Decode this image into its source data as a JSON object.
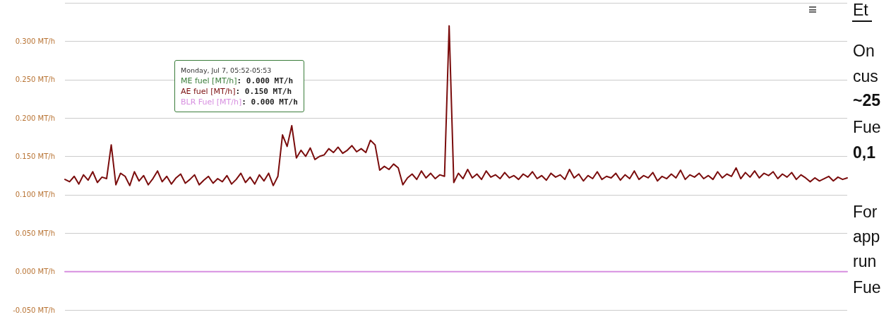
{
  "chart_data": {
    "type": "line",
    "categories": [
      null,
      null,
      null,
      null,
      null,
      null,
      null,
      null,
      null,
      null,
      null,
      null,
      null,
      null,
      null,
      null,
      null,
      null,
      null,
      null,
      null,
      null,
      null,
      null,
      null,
      null,
      null,
      null,
      null,
      null,
      null,
      null,
      null,
      null,
      null,
      null,
      null,
      null,
      null,
      null,
      null,
      null,
      null,
      null,
      null,
      null,
      null,
      null,
      null,
      null,
      null,
      null,
      null,
      null,
      null,
      null,
      null,
      null,
      null,
      null,
      null,
      null,
      null,
      null,
      null,
      null,
      null,
      null,
      null,
      null,
      null,
      null,
      null,
      null,
      null,
      null,
      null,
      null,
      null,
      null,
      null,
      null,
      null,
      null,
      null,
      null,
      null,
      null,
      null,
      null,
      null,
      null,
      null,
      null,
      null,
      null,
      null,
      null,
      null,
      null,
      null,
      null,
      null,
      null,
      null,
      null,
      null,
      null,
      null,
      null,
      null,
      null,
      null,
      null,
      null,
      null,
      null,
      null,
      null,
      null,
      null,
      null,
      null,
      null,
      null,
      null,
      null,
      null,
      null,
      null,
      null,
      null,
      null,
      null,
      null,
      null,
      null,
      null,
      null,
      null,
      null,
      null,
      null,
      null,
      null,
      null,
      null,
      null,
      null,
      null,
      null,
      null,
      null,
      null,
      null,
      null,
      null,
      null,
      null,
      null,
      null,
      null,
      null,
      null,
      null,
      null,
      null,
      null,
      null,
      null
    ],
    "series": [
      {
        "name": "ME fuel [MT/h]",
        "color": "#3a7d3a",
        "values": [
          null,
          null,
          null,
          null,
          null,
          null,
          null,
          null,
          null,
          null,
          null,
          null,
          null,
          null,
          null,
          null,
          null,
          null,
          null,
          null,
          null,
          null,
          null,
          null,
          null,
          null,
          null,
          null,
          null,
          null,
          null,
          null,
          null,
          null,
          null,
          null,
          null,
          null,
          null,
          null,
          null,
          null,
          null,
          null,
          null,
          null,
          null,
          null,
          null,
          null,
          null,
          null,
          null,
          null,
          null,
          null,
          null,
          null,
          null,
          null,
          null,
          null,
          null,
          null,
          null,
          null,
          null,
          null,
          null,
          null,
          null,
          null,
          null,
          null,
          null,
          null,
          null,
          null,
          null,
          null,
          null,
          null,
          null,
          null,
          null,
          null,
          null,
          null,
          null,
          null,
          null,
          null,
          null,
          null,
          null,
          null,
          null,
          null,
          null,
          null,
          null,
          null,
          null,
          null,
          null,
          null,
          null,
          null,
          null,
          null,
          null,
          null,
          null,
          null,
          null,
          null,
          null,
          null,
          null,
          null,
          null,
          null,
          null,
          null,
          null,
          null,
          null,
          null,
          null,
          null,
          null,
          null,
          null,
          null,
          null,
          null,
          null,
          null,
          null,
          null,
          null,
          null,
          null,
          null,
          null,
          null,
          null,
          null,
          null,
          null,
          null,
          null,
          null,
          null,
          null,
          null,
          null,
          null,
          null,
          null,
          null,
          null,
          null,
          null,
          null,
          null,
          null,
          null,
          null,
          null
        ]
      },
      {
        "name": "AE fuel [MT/h]",
        "color": "#7a0c0c",
        "values": [
          0.12,
          0.117,
          0.124,
          0.114,
          0.126,
          0.119,
          0.13,
          0.116,
          0.123,
          0.121,
          0.165,
          0.113,
          0.128,
          0.124,
          0.112,
          0.13,
          0.118,
          0.125,
          0.113,
          0.121,
          0.131,
          0.117,
          0.124,
          0.114,
          0.122,
          0.127,
          0.115,
          0.12,
          0.126,
          0.113,
          0.119,
          0.124,
          0.115,
          0.121,
          0.117,
          0.125,
          0.114,
          0.12,
          0.128,
          0.116,
          0.123,
          0.114,
          0.126,
          0.118,
          0.128,
          0.112,
          0.124,
          0.178,
          0.163,
          0.19,
          0.148,
          0.158,
          0.15,
          0.161,
          0.146,
          0.15,
          0.152,
          0.16,
          0.155,
          0.162,
          0.154,
          0.158,
          0.164,
          0.156,
          0.16,
          0.155,
          0.171,
          0.165,
          0.132,
          0.137,
          0.133,
          0.14,
          0.135,
          0.113,
          0.122,
          0.127,
          0.12,
          0.131,
          0.122,
          0.128,
          0.121,
          0.126,
          0.124,
          0.32,
          0.116,
          0.128,
          0.121,
          0.133,
          0.122,
          0.127,
          0.12,
          0.131,
          0.123,
          0.126,
          0.121,
          0.129,
          0.122,
          0.125,
          0.12,
          0.127,
          0.123,
          0.13,
          0.121,
          0.125,
          0.119,
          0.128,
          0.123,
          0.126,
          0.12,
          0.133,
          0.122,
          0.127,
          0.118,
          0.125,
          0.121,
          0.13,
          0.12,
          0.124,
          0.122,
          0.128,
          0.119,
          0.126,
          0.121,
          0.131,
          0.12,
          0.125,
          0.122,
          0.129,
          0.118,
          0.124,
          0.121,
          0.127,
          0.122,
          0.132,
          0.12,
          0.126,
          0.123,
          0.128,
          0.121,
          0.125,
          0.12,
          0.13,
          0.122,
          0.127,
          0.124,
          0.135,
          0.121,
          0.129,
          0.123,
          0.131,
          0.122,
          0.128,
          0.125,
          0.13,
          0.121,
          0.127,
          0.123,
          0.129,
          0.12,
          0.126,
          0.122,
          0.117,
          0.122,
          0.118,
          0.121,
          0.124,
          0.118,
          0.123,
          0.12,
          0.122
        ]
      },
      {
        "name": "BLR Fuel [MT/h]",
        "color": "#d78fe0",
        "values": [
          0,
          0,
          0,
          0,
          0,
          0,
          0,
          0,
          0,
          0,
          0,
          0,
          0,
          0,
          0,
          0,
          0,
          0,
          0,
          0,
          0,
          0,
          0,
          0,
          0,
          0,
          0,
          0,
          0,
          0,
          0,
          0,
          0,
          0,
          0,
          0,
          0,
          0,
          0,
          0,
          0,
          0,
          0,
          0,
          0,
          0,
          0,
          0,
          0,
          0,
          0,
          0,
          0,
          0,
          0,
          0,
          0,
          0,
          0,
          0,
          0,
          0,
          0,
          0,
          0,
          0,
          0,
          0,
          0,
          0,
          0,
          0,
          0,
          0,
          0,
          0,
          0,
          0,
          0,
          0,
          0,
          0,
          0,
          0,
          0,
          0,
          0,
          0,
          0,
          0,
          0,
          0,
          0,
          0,
          0,
          0,
          0,
          0,
          0,
          0,
          0,
          0,
          0,
          0,
          0,
          0,
          0,
          0,
          0,
          0,
          0,
          0,
          0,
          0,
          0,
          0,
          0,
          0,
          0,
          0,
          0,
          0,
          0,
          0,
          0,
          0,
          0,
          0,
          0,
          0,
          0,
          0,
          0,
          0,
          0,
          0,
          0,
          0,
          0,
          0,
          0,
          0,
          0,
          0,
          0,
          0,
          0,
          0,
          0,
          0,
          0,
          0,
          0,
          0,
          0,
          0,
          0,
          0,
          0,
          0,
          0,
          0,
          0,
          0,
          0,
          0,
          0,
          0,
          0,
          0
        ]
      }
    ],
    "ylim": [
      -0.05,
      0.35
    ],
    "yticks": [
      {
        "value": -0.05,
        "label": "-0.050 MT/h"
      },
      {
        "value": 0,
        "label": "0.000 MT/h"
      },
      {
        "value": 0.05,
        "label": "0.050 MT/h"
      },
      {
        "value": 0.1,
        "label": "0.100 MT/h"
      },
      {
        "value": 0.15,
        "label": "0.150 MT/h"
      },
      {
        "value": 0.2,
        "label": "0.200 MT/h"
      },
      {
        "value": 0.25,
        "label": "0.250 MT/h"
      },
      {
        "value": 0.3,
        "label": "0.300 MT/h"
      },
      {
        "value": 0.35,
        "label": null
      }
    ],
    "grid": "y",
    "line_style": "solid",
    "annotations": [
      "Monday, Jul 7, 05:52-05:53",
      ": 0.000 MT/h",
      ": 0.150 MT/h",
      ": 0.000 MT/h",
      "Et",
      "On",
      "cus",
      "~25",
      "Fue",
      "0,1",
      "For",
      "app",
      "run",
      "Fue"
    ]
  }
}
